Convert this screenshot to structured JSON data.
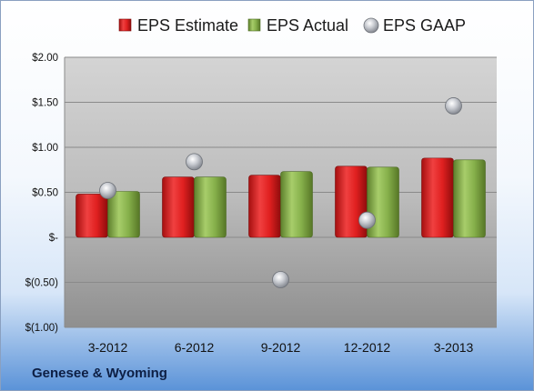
{
  "company": "Genesee & Wyoming",
  "colors": {
    "estimate": "#d81e1e",
    "actual": "#7fa843",
    "gaap": "#b9bcc2"
  },
  "chart_data": {
    "type": "bar",
    "categories": [
      "3-2012",
      "6-2012",
      "9-2012",
      "12-2012",
      "3-2013"
    ],
    "series": [
      {
        "name": "EPS Estimate",
        "kind": "bar",
        "values": [
          0.48,
          0.67,
          0.69,
          0.79,
          0.88
        ]
      },
      {
        "name": "EPS Actual",
        "kind": "bar",
        "values": [
          0.51,
          0.67,
          0.73,
          0.78,
          0.86
        ]
      },
      {
        "name": "EPS GAAP",
        "kind": "scatter",
        "values": [
          0.52,
          0.84,
          -0.47,
          0.19,
          1.46
        ]
      }
    ],
    "ylim": [
      -1.0,
      2.0
    ],
    "yticks": [
      2.0,
      1.5,
      1.0,
      0.5,
      0,
      -0.5,
      -1.0
    ],
    "ytick_labels": [
      "$2.00",
      "$1.50",
      "$1.00",
      "$0.50",
      "$-",
      "$(0.50)",
      "$(1.00)"
    ],
    "grid": true,
    "legend_position": "top"
  }
}
